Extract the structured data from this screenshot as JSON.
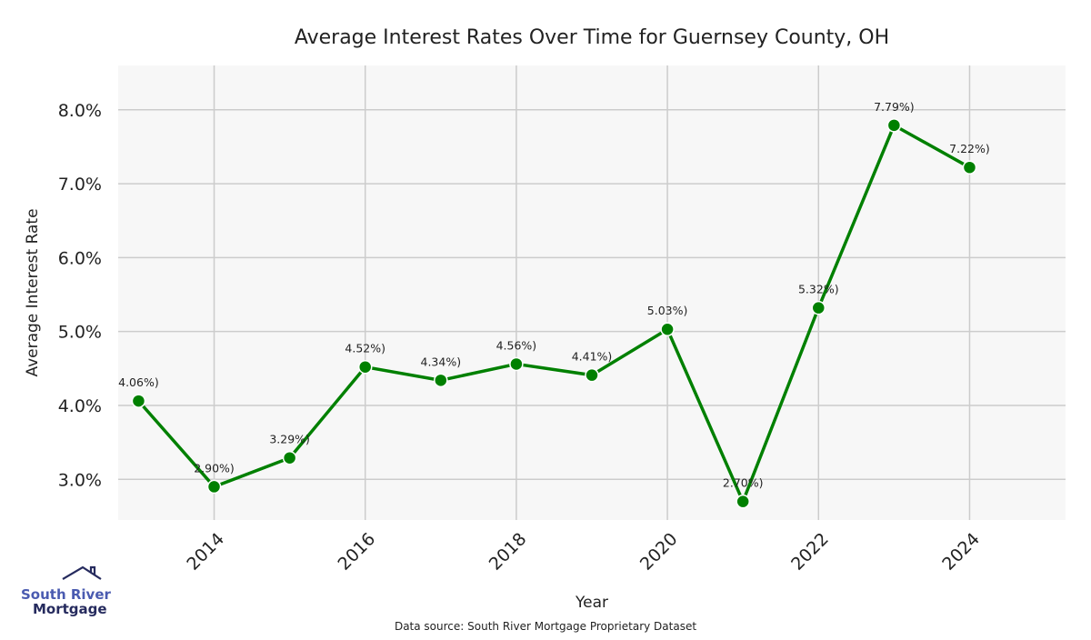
{
  "chart_data": {
    "type": "line",
    "title": "Average Interest Rates Over Time for Guernsey County, OH",
    "xlabel": "Year",
    "ylabel": "Average Interest Rate",
    "x": [
      2013,
      2014,
      2015,
      2016,
      2017,
      2018,
      2019,
      2020,
      2021,
      2022,
      2023,
      2024
    ],
    "series": [
      {
        "name": "Average Interest Rate",
        "values": [
          4.06,
          2.9,
          3.29,
          4.52,
          4.34,
          4.56,
          4.41,
          5.03,
          2.7,
          5.32,
          7.79,
          7.22
        ],
        "labels": [
          "4.06%)",
          "2.90%)",
          "3.29%)",
          "4.52%)",
          "4.34%)",
          "4.56%)",
          "4.41%)",
          "5.03%)",
          "2.70%)",
          "5.32%)",
          "7.79%)",
          "7.22%)"
        ]
      }
    ],
    "xticks": [
      2014,
      2016,
      2018,
      2020,
      2022,
      2024
    ],
    "xtick_labels": [
      "2014",
      "2016",
      "2018",
      "2020",
      "2022",
      "2024"
    ],
    "yticks": [
      3,
      4,
      5,
      6,
      7,
      8
    ],
    "ytick_labels": [
      "3.0%",
      "4.0%",
      "5.0%",
      "6.0%",
      "7.0%",
      "8.0%"
    ],
    "xlim": [
      2012.73,
      2025.27
    ],
    "ylim": [
      2.45,
      8.6
    ],
    "grid": true,
    "line_color": "#008000",
    "background": "#f7f7f7"
  },
  "footer": {
    "source": "Data source: South River Mortgage Proprietary Dataset"
  },
  "logo": {
    "line1": "South River",
    "line2": "Mortgage"
  }
}
